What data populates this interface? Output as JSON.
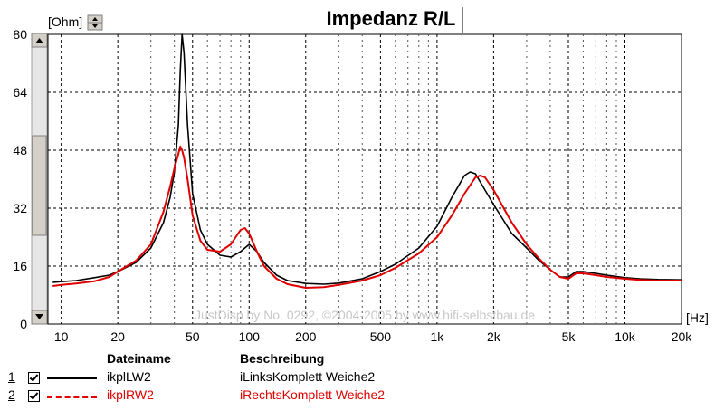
{
  "chart_data": {
    "type": "line",
    "title": "Impedanz R/L",
    "ylabel": "[Ohm]",
    "xunit": "[Hz]",
    "xscale": "log",
    "xlim": [
      8.5,
      20000
    ],
    "ylim": [
      0,
      80
    ],
    "grid": true,
    "yticks": [
      "0",
      "16",
      "32",
      "48",
      "64",
      "80"
    ],
    "xticks": [
      "10",
      "20",
      "50",
      "100",
      "200",
      "500",
      "1k",
      "2k",
      "5k",
      "10k",
      "20k"
    ],
    "watermark": "JustDisp by No. 0292, ©2004-2005 by www.hifi-selbstbau.de",
    "series": [
      {
        "name": "ikplLW2",
        "color": "#000000",
        "style": "solid",
        "points": [
          [
            9,
            11.5
          ],
          [
            10,
            11.7
          ],
          [
            12,
            12
          ],
          [
            15,
            12.8
          ],
          [
            18,
            13.5
          ],
          [
            20,
            14.5
          ],
          [
            25,
            17
          ],
          [
            30,
            21
          ],
          [
            35,
            28
          ],
          [
            38,
            35
          ],
          [
            40,
            42
          ],
          [
            42,
            55
          ],
          [
            43,
            70
          ],
          [
            44,
            80
          ],
          [
            45,
            75
          ],
          [
            47,
            55
          ],
          [
            50,
            36
          ],
          [
            55,
            26
          ],
          [
            60,
            22
          ],
          [
            70,
            19
          ],
          [
            80,
            18.5
          ],
          [
            90,
            20
          ],
          [
            100,
            22
          ],
          [
            110,
            20
          ],
          [
            120,
            17
          ],
          [
            140,
            13.5
          ],
          [
            160,
            12
          ],
          [
            200,
            11.2
          ],
          [
            250,
            11
          ],
          [
            300,
            11.3
          ],
          [
            400,
            12.5
          ],
          [
            500,
            14.5
          ],
          [
            600,
            16.5
          ],
          [
            800,
            21
          ],
          [
            1000,
            27
          ],
          [
            1200,
            35
          ],
          [
            1400,
            41
          ],
          [
            1500,
            42
          ],
          [
            1600,
            41.5
          ],
          [
            1800,
            37
          ],
          [
            2000,
            33
          ],
          [
            2500,
            25
          ],
          [
            3000,
            21
          ],
          [
            3500,
            17.5
          ],
          [
            4000,
            15
          ],
          [
            4500,
            13
          ],
          [
            5000,
            13
          ],
          [
            5500,
            14.5
          ],
          [
            6000,
            14.5
          ],
          [
            7000,
            14
          ],
          [
            8000,
            13.5
          ],
          [
            10000,
            12.8
          ],
          [
            12000,
            12.5
          ],
          [
            15000,
            12.3
          ],
          [
            20000,
            12.2
          ]
        ]
      },
      {
        "name": "ikplRW2",
        "color": "#e00000",
        "style": "dashed",
        "points": [
          [
            9,
            10.5
          ],
          [
            10,
            10.8
          ],
          [
            12,
            11.2
          ],
          [
            15,
            11.8
          ],
          [
            18,
            13
          ],
          [
            20,
            14.5
          ],
          [
            25,
            17.5
          ],
          [
            30,
            22
          ],
          [
            35,
            31
          ],
          [
            38,
            38
          ],
          [
            40,
            43
          ],
          [
            42,
            47
          ],
          [
            43,
            49
          ],
          [
            44,
            48
          ],
          [
            45,
            46
          ],
          [
            47,
            40
          ],
          [
            50,
            30
          ],
          [
            55,
            23
          ],
          [
            60,
            20.5
          ],
          [
            70,
            20
          ],
          [
            80,
            22
          ],
          [
            90,
            26
          ],
          [
            95,
            26.5
          ],
          [
            100,
            25
          ],
          [
            110,
            20
          ],
          [
            120,
            16
          ],
          [
            140,
            12.5
          ],
          [
            160,
            11
          ],
          [
            200,
            10
          ],
          [
            250,
            10.2
          ],
          [
            300,
            10.8
          ],
          [
            400,
            12
          ],
          [
            500,
            13.5
          ],
          [
            600,
            15.5
          ],
          [
            800,
            19.5
          ],
          [
            1000,
            24
          ],
          [
            1200,
            30
          ],
          [
            1400,
            36
          ],
          [
            1600,
            40.5
          ],
          [
            1700,
            41
          ],
          [
            1800,
            40.5
          ],
          [
            2000,
            37
          ],
          [
            2500,
            28
          ],
          [
            3000,
            22
          ],
          [
            3500,
            18
          ],
          [
            4000,
            15
          ],
          [
            4500,
            13
          ],
          [
            5000,
            12.5
          ],
          [
            5500,
            14
          ],
          [
            6000,
            14
          ],
          [
            7000,
            13.5
          ],
          [
            8000,
            13
          ],
          [
            10000,
            12.5
          ],
          [
            12000,
            12.2
          ],
          [
            15000,
            12
          ],
          [
            20000,
            12
          ]
        ]
      }
    ]
  },
  "legend": {
    "header_file": "Dateiname",
    "header_desc": "Beschreibung",
    "rows": [
      {
        "num": "1",
        "file": "ikplLW2",
        "desc": "iLinksKomplett Weiche2",
        "color": "#000000",
        "checked": true
      },
      {
        "num": "2",
        "file": "ikplRW2",
        "desc": "iRechtsKomplett Weiche2",
        "color": "#e00000",
        "checked": true
      }
    ]
  }
}
